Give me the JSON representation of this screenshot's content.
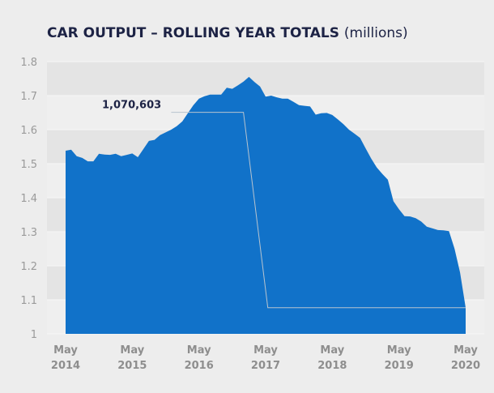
{
  "chart_data": {
    "type": "area",
    "title": "CAR OUTPUT – ROLLING YEAR TOTALS",
    "title_unit": "(millions)",
    "xlabel": "",
    "ylabel": "",
    "ylim": [
      1.0,
      1.8
    ],
    "yticks": [
      "1",
      "1.1",
      "1.2",
      "1.3",
      "1.4",
      "1.5",
      "1.6",
      "1.7",
      "1.8"
    ],
    "xticks": [
      {
        "month": "May",
        "year": "2014"
      },
      {
        "month": "May",
        "year": "2015"
      },
      {
        "month": "May",
        "year": "2016"
      },
      {
        "month": "May",
        "year": "2017"
      },
      {
        "month": "May",
        "year": "2018"
      },
      {
        "month": "May",
        "year": "2019"
      },
      {
        "month": "May",
        "year": "2020"
      }
    ],
    "x_start": "May 2014",
    "x_end": "May 2020",
    "x_interval": "monthly",
    "grid": "alternating horizontal bands",
    "colors": {
      "area": "#1172c9",
      "band_dark": "#e4e4e4",
      "band_light": "#efefef",
      "background": "#ededed",
      "annotation_line": "#b8c4cf",
      "title": "#1d2345"
    },
    "values": [
      1.538,
      1.541,
      1.522,
      1.517,
      1.507,
      1.507,
      1.529,
      1.527,
      1.526,
      1.529,
      1.522,
      1.526,
      1.53,
      1.519,
      1.543,
      1.567,
      1.57,
      1.584,
      1.592,
      1.6,
      1.61,
      1.624,
      1.648,
      1.672,
      1.691,
      1.698,
      1.703,
      1.703,
      1.703,
      1.723,
      1.72,
      1.73,
      1.741,
      1.755,
      1.74,
      1.727,
      1.697,
      1.7,
      1.695,
      1.691,
      1.691,
      1.682,
      1.672,
      1.67,
      1.668,
      1.644,
      1.648,
      1.649,
      1.643,
      1.63,
      1.616,
      1.6,
      1.588,
      1.576,
      1.545,
      1.515,
      1.489,
      1.47,
      1.453,
      1.39,
      1.366,
      1.346,
      1.345,
      1.34,
      1.33,
      1.315,
      1.31,
      1.305,
      1.304,
      1.302,
      1.25,
      1.18,
      1.077
    ],
    "annotation": {
      "text": "1,070,603",
      "line_points": [
        [
          19,
          1.651
        ],
        [
          32,
          1.651
        ],
        [
          36.4,
          1.077
        ],
        [
          72,
          1.077
        ]
      ]
    }
  }
}
